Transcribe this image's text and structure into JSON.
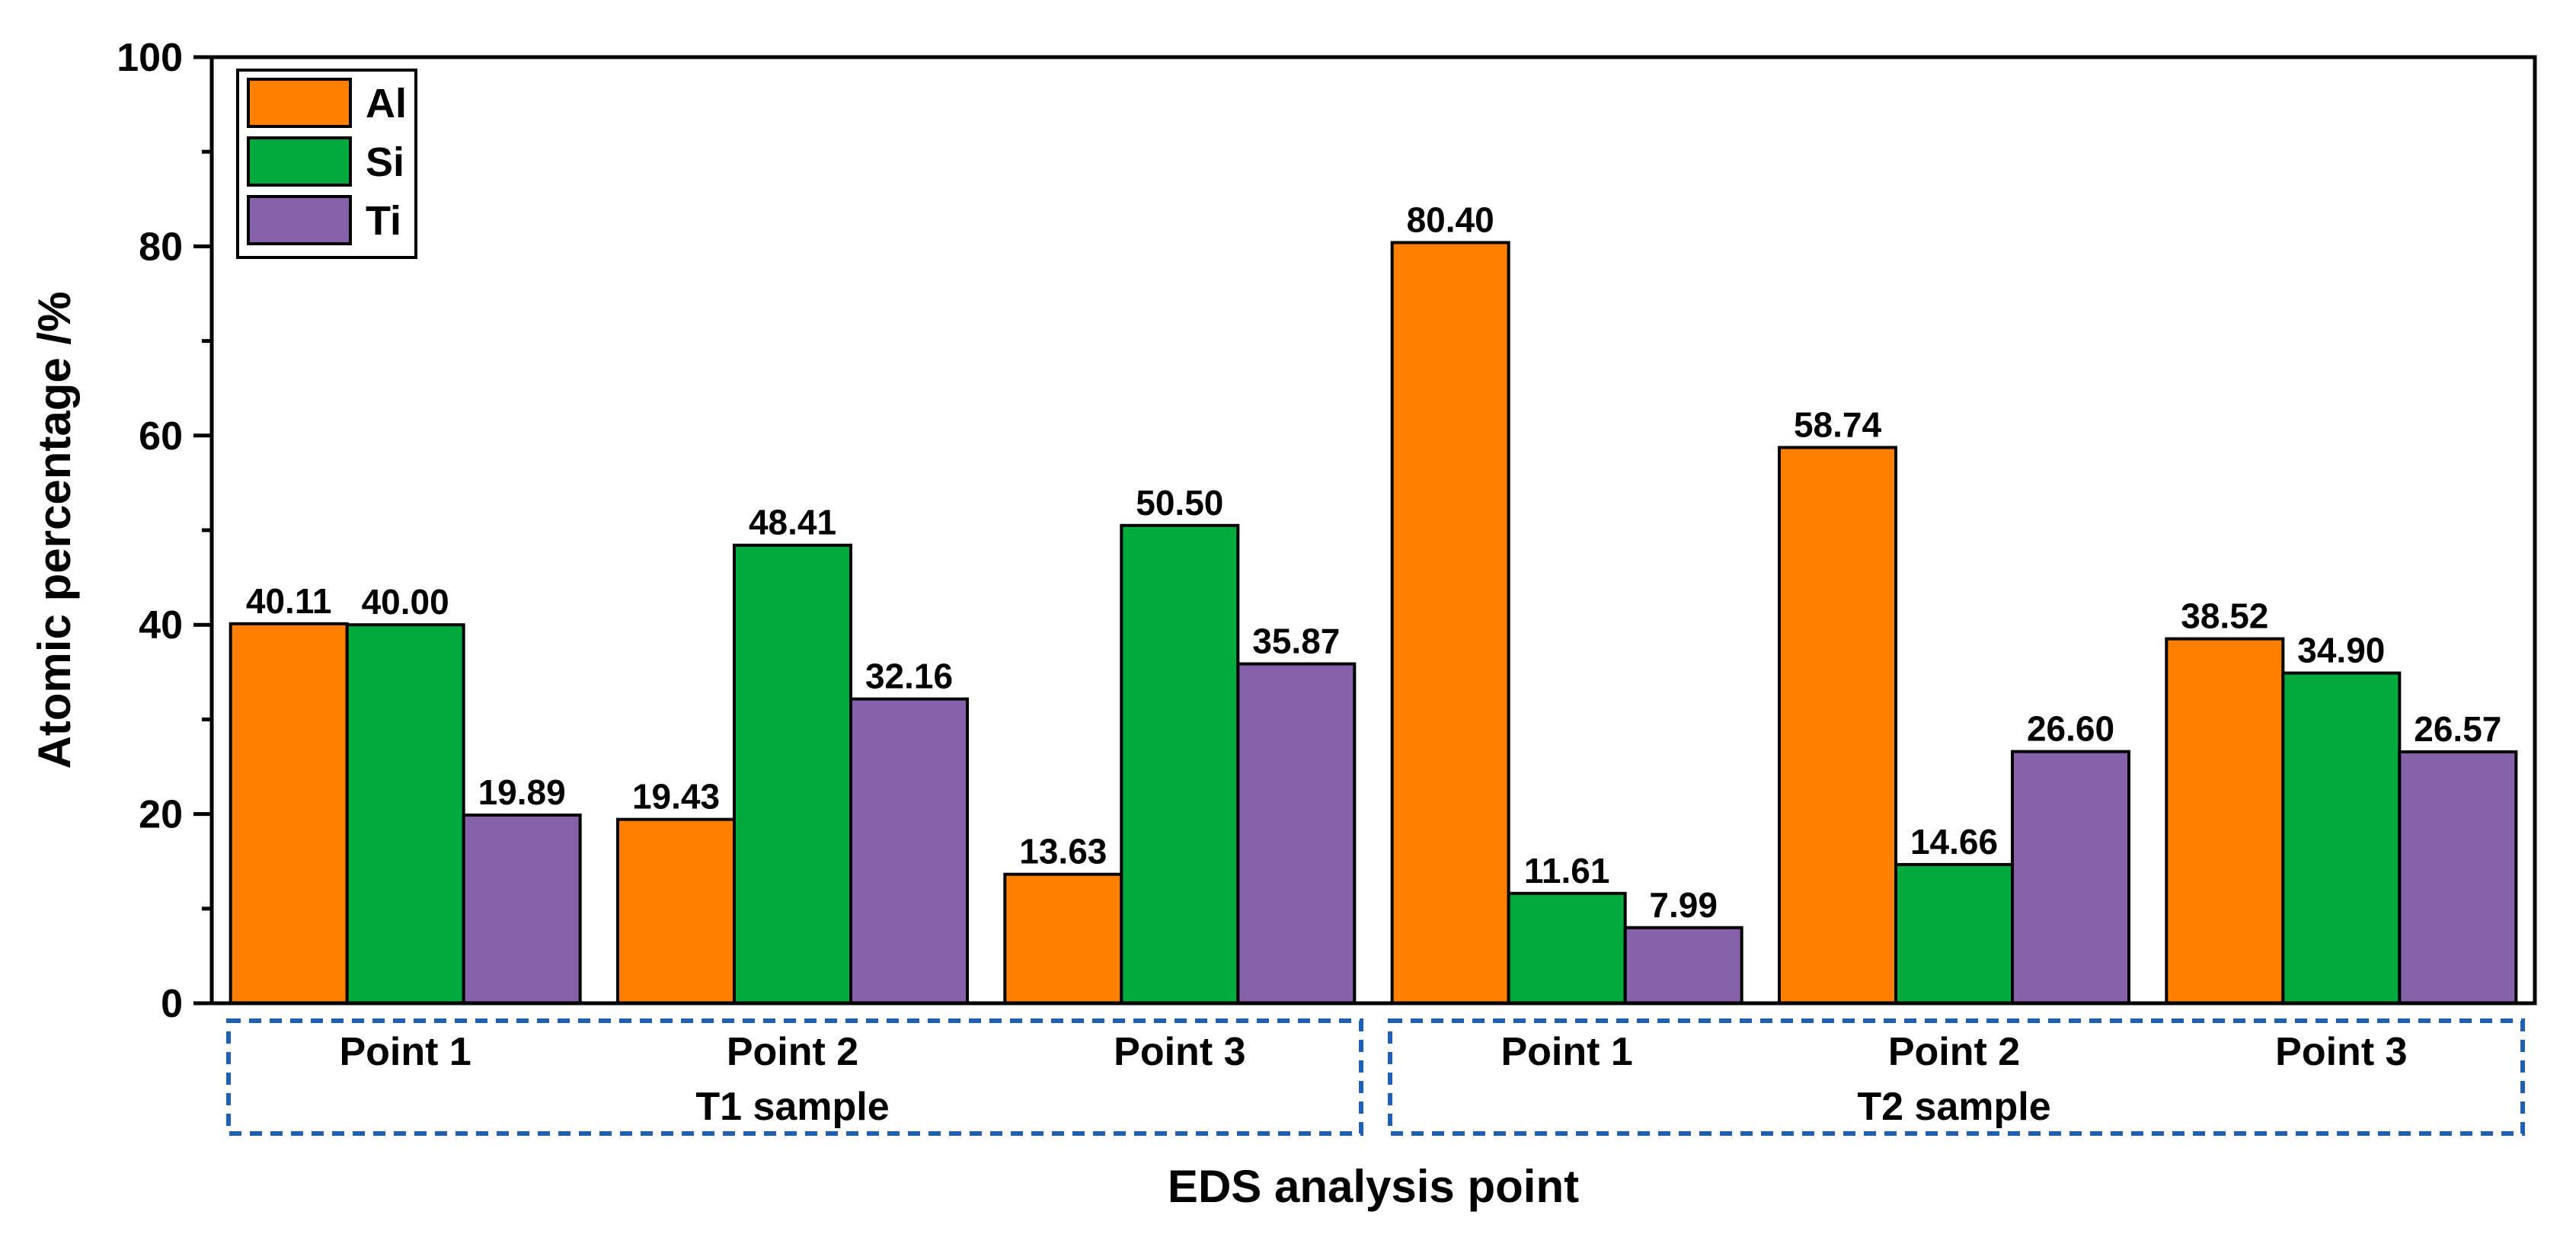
{
  "chart_data": {
    "type": "bar",
    "xlabel": "EDS analysis point",
    "ylabel": "Atomic percentage /%",
    "ylim": [
      0,
      100
    ],
    "yticks": [
      0,
      20,
      40,
      60,
      80,
      100
    ],
    "grid": false,
    "legend_position": "top-left",
    "categories": [
      "Point 1",
      "Point 2",
      "Point 3",
      "Point 1",
      "Point 2",
      "Point 3"
    ],
    "groups": [
      {
        "label": "T1 sample",
        "categories": [
          "Point 1",
          "Point 2",
          "Point 3"
        ]
      },
      {
        "label": "T2 sample",
        "categories": [
          "Point 1",
          "Point 2",
          "Point 3"
        ]
      }
    ],
    "series": [
      {
        "name": "Al",
        "color": "#FF7F00",
        "values": [
          40.11,
          19.43,
          13.63,
          80.4,
          58.74,
          38.52
        ],
        "labels": [
          "40.11",
          "19.43",
          "13.63",
          "80.40",
          "58.74",
          "38.52"
        ]
      },
      {
        "name": "Si",
        "color": "#00AA3C",
        "values": [
          40.0,
          48.41,
          50.5,
          11.61,
          14.66,
          34.9
        ],
        "labels": [
          "40.00",
          "48.41",
          "50.50",
          "11.61",
          "14.66",
          "34.90"
        ]
      },
      {
        "name": "Ti",
        "color": "#8660A8",
        "values": [
          19.89,
          32.16,
          35.87,
          7.99,
          26.6,
          26.57
        ],
        "labels": [
          "19.89",
          "32.16",
          "35.87",
          "7.99",
          "26.60",
          "26.57"
        ]
      }
    ],
    "group_box_color": "#1F5FB4"
  }
}
